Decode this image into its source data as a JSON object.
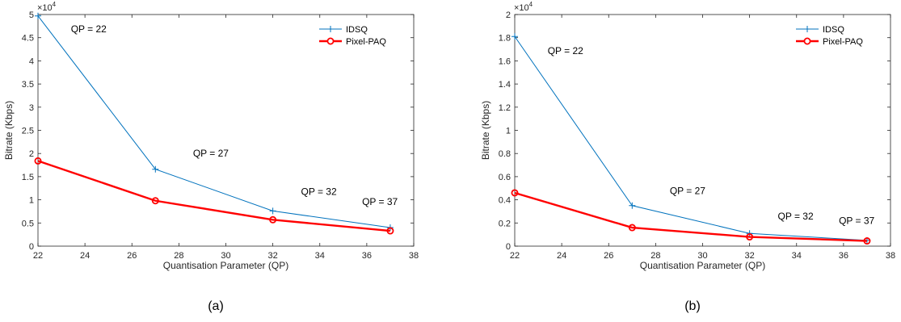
{
  "chart_data": [
    {
      "type": "line",
      "caption": "(a)",
      "xlabel": "Quantisation Parameter (QP)",
      "ylabel": "Bitrate (Kbps)",
      "multiplier": "×10",
      "multiplier_exp": "4",
      "xlim": [
        22,
        38
      ],
      "ylim": [
        0,
        5
      ],
      "xticks": [
        "22",
        "24",
        "26",
        "28",
        "30",
        "32",
        "34",
        "36",
        "38"
      ],
      "yticks": [
        "0",
        "0.5",
        "1",
        "1.5",
        "2",
        "2.5",
        "3",
        "3.5",
        "4",
        "4.5",
        "5"
      ],
      "x": [
        22,
        27,
        32,
        37
      ],
      "series": [
        {
          "name": "IDSQ",
          "color": "#0072BD",
          "marker": "plus",
          "values": [
            4.97,
            1.66,
            0.76,
            0.4
          ]
        },
        {
          "name": "Pixel-PAQ",
          "color": "#FF0000",
          "marker": "circle",
          "values": [
            1.84,
            0.98,
            0.57,
            0.33
          ]
        }
      ],
      "annotations": [
        {
          "text": "QP = 22",
          "x": 23.4,
          "y": 4.62
        },
        {
          "text": "QP = 27",
          "x": 28.6,
          "y": 1.93
        },
        {
          "text": "QP = 32",
          "x": 33.2,
          "y": 1.11
        },
        {
          "text": "QP = 37",
          "x": 35.8,
          "y": 0.89
        }
      ],
      "legend_position": "top-right"
    },
    {
      "type": "line",
      "caption": "(b)",
      "xlabel": "Quantisation Parameter (QP)",
      "ylabel": "Bitrate (Kbps)",
      "multiplier": "×10",
      "multiplier_exp": "4",
      "xlim": [
        22,
        38
      ],
      "ylim": [
        0,
        2
      ],
      "xticks": [
        "22",
        "24",
        "26",
        "28",
        "30",
        "32",
        "34",
        "36",
        "38"
      ],
      "yticks": [
        "0",
        "0.2",
        "0.4",
        "0.6",
        "0.8",
        "1",
        "1.2",
        "1.4",
        "1.6",
        "1.8",
        "2"
      ],
      "x": [
        22,
        27,
        32,
        37
      ],
      "series": [
        {
          "name": "IDSQ",
          "color": "#0072BD",
          "marker": "plus",
          "values": [
            1.81,
            0.35,
            0.11,
            0.05
          ]
        },
        {
          "name": "Pixel-PAQ",
          "color": "#FF0000",
          "marker": "circle",
          "values": [
            0.46,
            0.16,
            0.08,
            0.045
          ]
        }
      ],
      "annotations": [
        {
          "text": "QP = 22",
          "x": 23.4,
          "y": 1.66
        },
        {
          "text": "QP = 27",
          "x": 28.6,
          "y": 0.45
        },
        {
          "text": "QP = 32",
          "x": 33.2,
          "y": 0.23
        },
        {
          "text": "QP = 37",
          "x": 35.8,
          "y": 0.19
        }
      ],
      "legend_position": "top-right"
    }
  ]
}
